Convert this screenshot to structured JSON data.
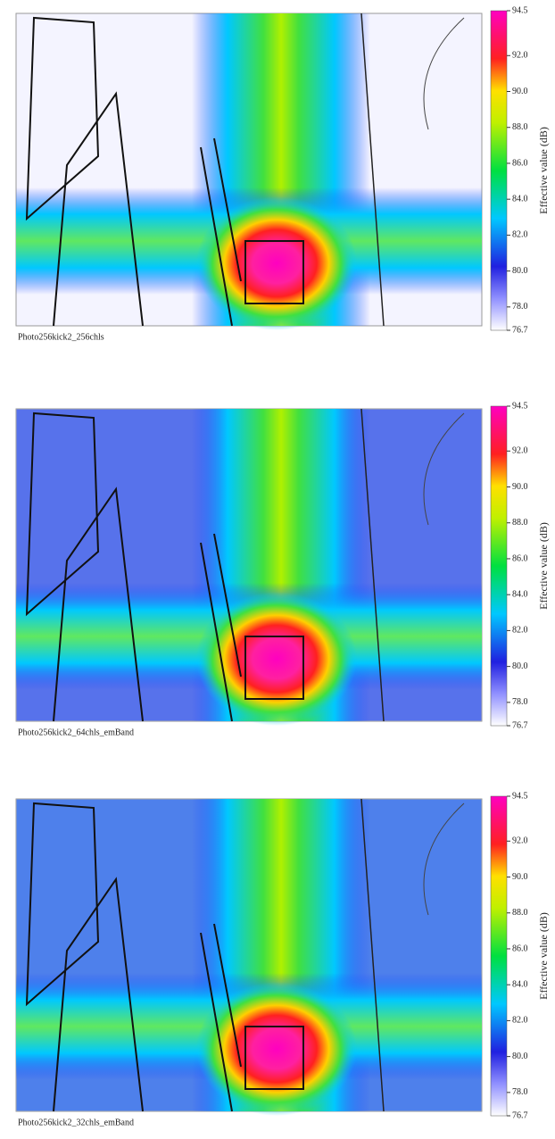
{
  "panels": [
    {
      "caption": "Photo256kick2_256chls",
      "colorbar": {
        "label": "Effective value (dB)",
        "lim": [
          76.7,
          94.5
        ],
        "ticks": [
          94.5,
          {
            "value": 92,
            "label": "92.0"
          },
          {
            "value": 90,
            "label": "90.0"
          },
          {
            "value": 88,
            "label": "88.0"
          },
          {
            "value": 86,
            "label": "86.0"
          },
          {
            "value": 84,
            "label": "84.0"
          },
          {
            "value": 82,
            "label": "82.0"
          },
          {
            "value": 80,
            "label": "80.0"
          },
          {
            "value": 78,
            "label": "78.0"
          },
          76.7
        ]
      }
    },
    {
      "caption": "Photo256kick2_64chls_emBand",
      "colorbar": {
        "label": "Effective value (dB)",
        "lim": [
          76.7,
          94.5
        ],
        "ticks": [
          94.5,
          {
            "value": 92,
            "label": "92.0"
          },
          {
            "value": 90,
            "label": "90.0"
          },
          {
            "value": 88,
            "label": "88.0"
          },
          {
            "value": 86,
            "label": "86.0"
          },
          {
            "value": 84,
            "label": "84.0"
          },
          {
            "value": 82,
            "label": "82.0"
          },
          {
            "value": 80,
            "label": "80.0"
          },
          {
            "value": 78,
            "label": "78.0"
          },
          76.7
        ]
      }
    },
    {
      "caption": "Photo256kick2_32chls_emBand",
      "colorbar": {
        "label": "Effective value (dB)",
        "lim": [
          76.7,
          94.5
        ],
        "ticks": [
          94.5,
          {
            "value": 92,
            "label": "92.0"
          },
          {
            "value": 90,
            "label": "90.0"
          },
          {
            "value": 88,
            "label": "88.0"
          },
          {
            "value": 86,
            "label": "86.0"
          },
          {
            "value": 84,
            "label": "84.0"
          },
          {
            "value": 82,
            "label": "82.0"
          },
          {
            "value": 80,
            "label": "80.0"
          },
          {
            "value": 78,
            "label": "78.0"
          },
          76.7
        ]
      }
    }
  ]
}
